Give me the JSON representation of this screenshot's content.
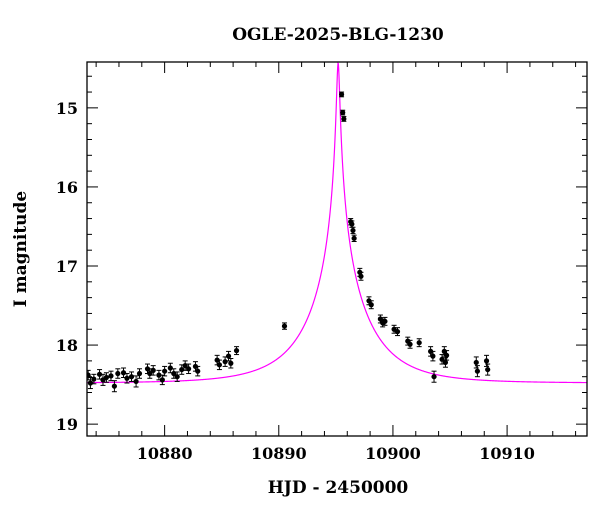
{
  "chart_data": {
    "type": "scatter",
    "title": "OGLE-2025-BLG-1230",
    "xlabel": "HJD - 2450000",
    "ylabel": "I magnitude",
    "xlim": [
      10873.2,
      10917.0
    ],
    "ylim": [
      19.15,
      14.42
    ],
    "y_inverted": true,
    "x_ticks": [
      10880,
      10890,
      10900,
      10910
    ],
    "y_ticks": [
      15,
      16,
      17,
      18,
      19
    ],
    "x_tick_labels": [
      "10880",
      "10890",
      "10900",
      "10910"
    ],
    "y_tick_labels": [
      "15",
      "16",
      "17",
      "18",
      "19"
    ],
    "grid": false,
    "model_color": "#ff00ff",
    "point_color": "#000000",
    "model": {
      "t0": 10895.2,
      "u0": 0.024,
      "tE": 5.2,
      "baseline_mag": 18.48
    },
    "series": [
      {
        "points": [
          [
            10873.3,
            18.38,
            0.06
          ],
          [
            10873.5,
            18.48,
            0.07
          ],
          [
            10873.8,
            18.43,
            0.06
          ],
          [
            10874.3,
            18.37,
            0.06
          ],
          [
            10874.6,
            18.44,
            0.07
          ],
          [
            10874.9,
            18.41,
            0.06
          ],
          [
            10875.3,
            18.39,
            0.06
          ],
          [
            10875.6,
            18.52,
            0.07
          ],
          [
            10875.9,
            18.36,
            0.06
          ],
          [
            10876.4,
            18.35,
            0.06
          ],
          [
            10876.7,
            18.42,
            0.06
          ],
          [
            10877.1,
            18.4,
            0.06
          ],
          [
            10877.5,
            18.46,
            0.07
          ],
          [
            10877.8,
            18.36,
            0.06
          ],
          [
            10878.5,
            18.3,
            0.06
          ],
          [
            10878.7,
            18.36,
            0.06
          ],
          [
            10879.0,
            18.32,
            0.06
          ],
          [
            10879.5,
            18.38,
            0.06
          ],
          [
            10879.8,
            18.44,
            0.06
          ],
          [
            10880.0,
            18.33,
            0.06
          ],
          [
            10880.5,
            18.29,
            0.06
          ],
          [
            10880.8,
            18.36,
            0.06
          ],
          [
            10881.1,
            18.4,
            0.06
          ],
          [
            10881.5,
            18.31,
            0.06
          ],
          [
            10881.8,
            18.26,
            0.06
          ],
          [
            10882.1,
            18.3,
            0.06
          ],
          [
            10882.7,
            18.27,
            0.06
          ],
          [
            10882.9,
            18.33,
            0.06
          ],
          [
            10884.6,
            18.19,
            0.06
          ],
          [
            10884.8,
            18.25,
            0.06
          ],
          [
            10885.3,
            18.21,
            0.06
          ],
          [
            10885.6,
            18.14,
            0.06
          ],
          [
            10885.8,
            18.23,
            0.06
          ],
          [
            10886.3,
            18.07,
            0.05
          ],
          [
            10890.5,
            17.76,
            0.04
          ],
          [
            10895.5,
            14.83,
            0.03
          ],
          [
            10895.6,
            15.06,
            0.03
          ],
          [
            10895.7,
            15.14,
            0.03
          ],
          [
            10896.3,
            16.44,
            0.04
          ],
          [
            10896.4,
            16.47,
            0.04
          ],
          [
            10896.5,
            16.55,
            0.04
          ],
          [
            10896.6,
            16.65,
            0.04
          ],
          [
            10897.1,
            17.08,
            0.05
          ],
          [
            10897.2,
            17.13,
            0.05
          ],
          [
            10897.9,
            17.44,
            0.05
          ],
          [
            10898.1,
            17.49,
            0.05
          ],
          [
            10898.9,
            17.67,
            0.05
          ],
          [
            10899.1,
            17.72,
            0.05
          ],
          [
            10899.3,
            17.7,
            0.05
          ],
          [
            10900.1,
            17.8,
            0.05
          ],
          [
            10900.4,
            17.83,
            0.05
          ],
          [
            10901.3,
            17.95,
            0.05
          ],
          [
            10901.5,
            17.99,
            0.05
          ],
          [
            10902.3,
            17.97,
            0.05
          ],
          [
            10903.3,
            18.08,
            0.06
          ],
          [
            10903.5,
            18.14,
            0.06
          ],
          [
            10903.6,
            18.4,
            0.07
          ],
          [
            10904.3,
            18.18,
            0.06
          ],
          [
            10904.5,
            18.08,
            0.06
          ],
          [
            10904.6,
            18.22,
            0.06
          ],
          [
            10904.7,
            18.13,
            0.06
          ],
          [
            10907.3,
            18.22,
            0.07
          ],
          [
            10907.4,
            18.33,
            0.07
          ],
          [
            10908.2,
            18.2,
            0.07
          ],
          [
            10908.3,
            18.31,
            0.07
          ]
        ]
      }
    ]
  }
}
